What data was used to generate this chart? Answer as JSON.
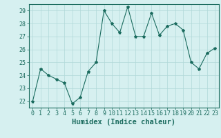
{
  "x": [
    0,
    1,
    2,
    3,
    4,
    5,
    6,
    7,
    8,
    9,
    10,
    11,
    12,
    13,
    14,
    15,
    16,
    17,
    18,
    19,
    20,
    21,
    22,
    23
  ],
  "y": [
    22.0,
    24.5,
    24.0,
    23.7,
    23.4,
    21.8,
    22.3,
    24.3,
    25.0,
    29.0,
    28.0,
    27.3,
    29.3,
    27.0,
    27.0,
    28.8,
    27.1,
    27.8,
    28.0,
    27.5,
    25.0,
    24.5,
    25.7,
    26.1
  ],
  "line_color": "#1a6b5e",
  "marker": "*",
  "marker_size": 3,
  "bg_color": "#d6f0f0",
  "grid_color": "#b0d8d8",
  "xlabel": "Humidex (Indice chaleur)",
  "xlim": [
    -0.5,
    23.5
  ],
  "ylim": [
    21.5,
    29.5
  ],
  "yticks": [
    22,
    23,
    24,
    25,
    26,
    27,
    28,
    29
  ],
  "xticks": [
    0,
    1,
    2,
    3,
    4,
    5,
    6,
    7,
    8,
    9,
    10,
    11,
    12,
    13,
    14,
    15,
    16,
    17,
    18,
    19,
    20,
    21,
    22,
    23
  ],
  "tick_color": "#1a6b5e",
  "tick_fontsize": 6,
  "xlabel_fontsize": 7.5
}
